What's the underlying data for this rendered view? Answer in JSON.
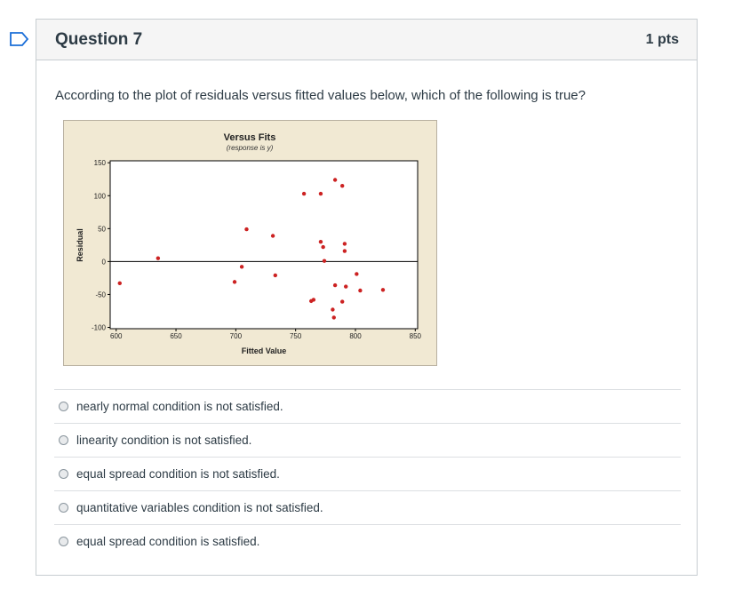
{
  "question": {
    "title": "Question 7",
    "points": "1 pts",
    "text": "According to the plot of residuals versus fitted values below, which of the following is true?"
  },
  "answers": [
    {
      "label": "nearly normal condition is not satisfied."
    },
    {
      "label": "linearity condition is not satisfied."
    },
    {
      "label": "equal spread condition is not satisfied."
    },
    {
      "label": "quantitative variables condition is not satisfied."
    },
    {
      "label": "equal spread condition is satisfied."
    }
  ],
  "colors": {
    "point": "#cc2222",
    "panel_bg": "#f1e9d3",
    "flag": "#1a6ed8"
  },
  "chart_data": {
    "type": "scatter",
    "title": "Versus Fits",
    "subtitle": "(response is y)",
    "xlabel": "Fitted Value",
    "ylabel": "Residual",
    "xlim": [
      595,
      852
    ],
    "ylim": [
      -102,
      153
    ],
    "xticks": [
      600,
      650,
      700,
      750,
      800,
      850
    ],
    "yticks": [
      150,
      100,
      50,
      0,
      -50,
      -100
    ],
    "reference_line_y": 0,
    "grid": false,
    "points": [
      {
        "x": 603,
        "y": -33
      },
      {
        "x": 635,
        "y": 5
      },
      {
        "x": 699,
        "y": -31
      },
      {
        "x": 705,
        "y": -8
      },
      {
        "x": 709,
        "y": 49
      },
      {
        "x": 731,
        "y": 39
      },
      {
        "x": 733,
        "y": -21
      },
      {
        "x": 757,
        "y": 103
      },
      {
        "x": 763,
        "y": -60
      },
      {
        "x": 765,
        "y": -58
      },
      {
        "x": 771,
        "y": 103
      },
      {
        "x": 771,
        "y": 30
      },
      {
        "x": 773,
        "y": 22
      },
      {
        "x": 774,
        "y": 1
      },
      {
        "x": 781,
        "y": -73
      },
      {
        "x": 782,
        "y": -85
      },
      {
        "x": 783,
        "y": -36
      },
      {
        "x": 783,
        "y": 124
      },
      {
        "x": 789,
        "y": 115
      },
      {
        "x": 789,
        "y": -61
      },
      {
        "x": 791,
        "y": 27
      },
      {
        "x": 791,
        "y": 16
      },
      {
        "x": 792,
        "y": -38
      },
      {
        "x": 801,
        "y": -19
      },
      {
        "x": 804,
        "y": -44
      },
      {
        "x": 823,
        "y": -43
      }
    ]
  }
}
